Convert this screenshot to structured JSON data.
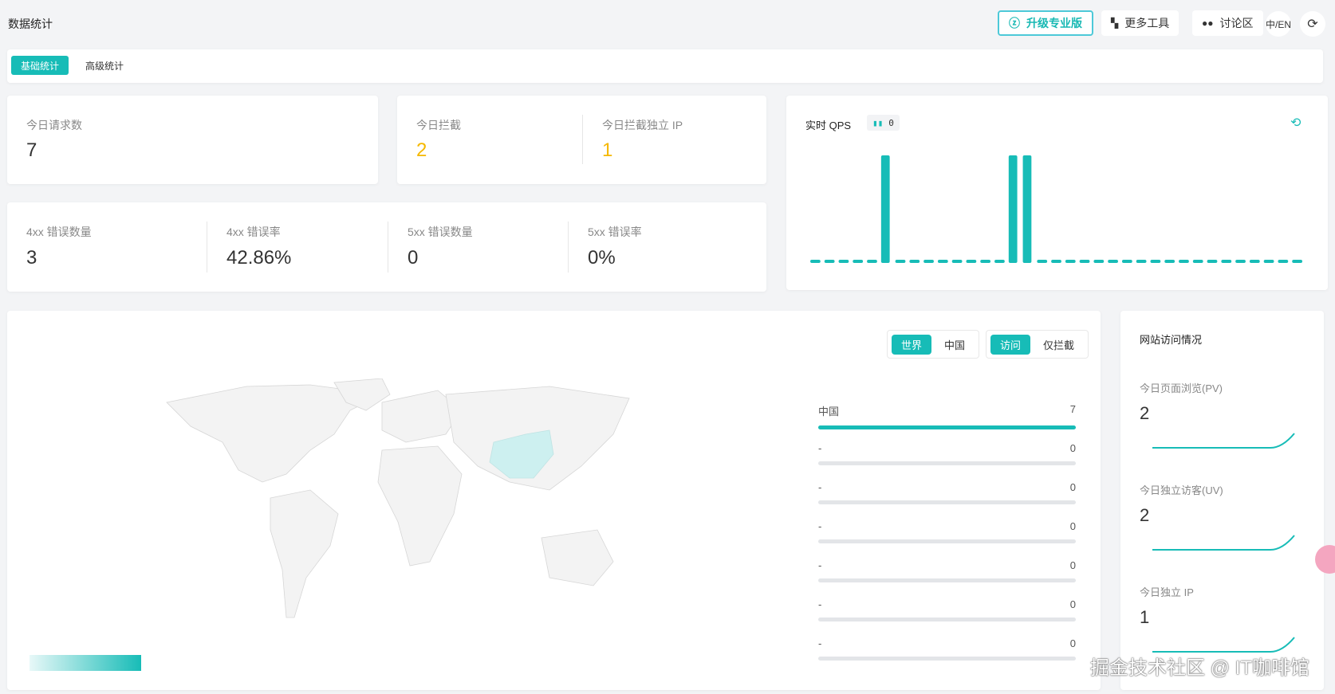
{
  "header": {
    "title": "数据统计",
    "upgrade": "升级专业版",
    "more_tools": "更多工具",
    "forum": "讨论区",
    "lang_icon": "中/EN",
    "logout_icon": "logout"
  },
  "tabs": [
    {
      "label": "基础统计",
      "active": true
    },
    {
      "label": "高级统计",
      "active": false
    }
  ],
  "stats": {
    "today_requests": {
      "label": "今日请求数",
      "value": "7"
    },
    "today_blocked": {
      "label": "今日拦截",
      "value": "2"
    },
    "today_blocked_ip": {
      "label": "今日拦截独立 IP",
      "value": "1"
    },
    "err4xx_count": {
      "label": "4xx 错误数量",
      "value": "3"
    },
    "err4xx_rate": {
      "label": "4xx 错误率",
      "value": "42.86%"
    },
    "err5xx_count": {
      "label": "5xx 错误数量",
      "value": "0"
    },
    "err5xx_rate": {
      "label": "5xx 错误率",
      "value": "0%"
    }
  },
  "qps": {
    "title": "实时 QPS",
    "current": "0"
  },
  "chart_data": {
    "type": "bar",
    "values": [
      0,
      0,
      0,
      0,
      0,
      1,
      0,
      0,
      0,
      0,
      0,
      0,
      0,
      0,
      1,
      1,
      0,
      0,
      0,
      0,
      0,
      0,
      0,
      0,
      0,
      0,
      0,
      0,
      0,
      0,
      0,
      0,
      0,
      0,
      0
    ],
    "ylim": [
      0,
      1
    ],
    "color": "#17bcb7"
  },
  "map": {
    "scope_options": [
      "世界",
      "中国"
    ],
    "scope_selected": "世界",
    "mode_options": [
      "访问",
      "仅拦截"
    ],
    "mode_selected": "访问",
    "ranking": [
      {
        "name": "中国",
        "value": "7",
        "pct": 100
      },
      {
        "name": "-",
        "value": "0",
        "pct": 0
      },
      {
        "name": "-",
        "value": "0",
        "pct": 0
      },
      {
        "name": "-",
        "value": "0",
        "pct": 0
      },
      {
        "name": "-",
        "value": "0",
        "pct": 0
      },
      {
        "name": "-",
        "value": "0",
        "pct": 0
      },
      {
        "name": "-",
        "value": "0",
        "pct": 0
      }
    ]
  },
  "site": {
    "title": "网站访问情况",
    "pv": {
      "label": "今日页面浏览(PV)",
      "value": "2"
    },
    "uv": {
      "label": "今日独立访客(UV)",
      "value": "2"
    },
    "ip": {
      "label": "今日独立 IP",
      "value": "1"
    }
  },
  "watermark": "掘金技术社区 @ IT咖啡馆",
  "colors": {
    "accent": "#17bcb7",
    "warning": "#f5b800"
  }
}
